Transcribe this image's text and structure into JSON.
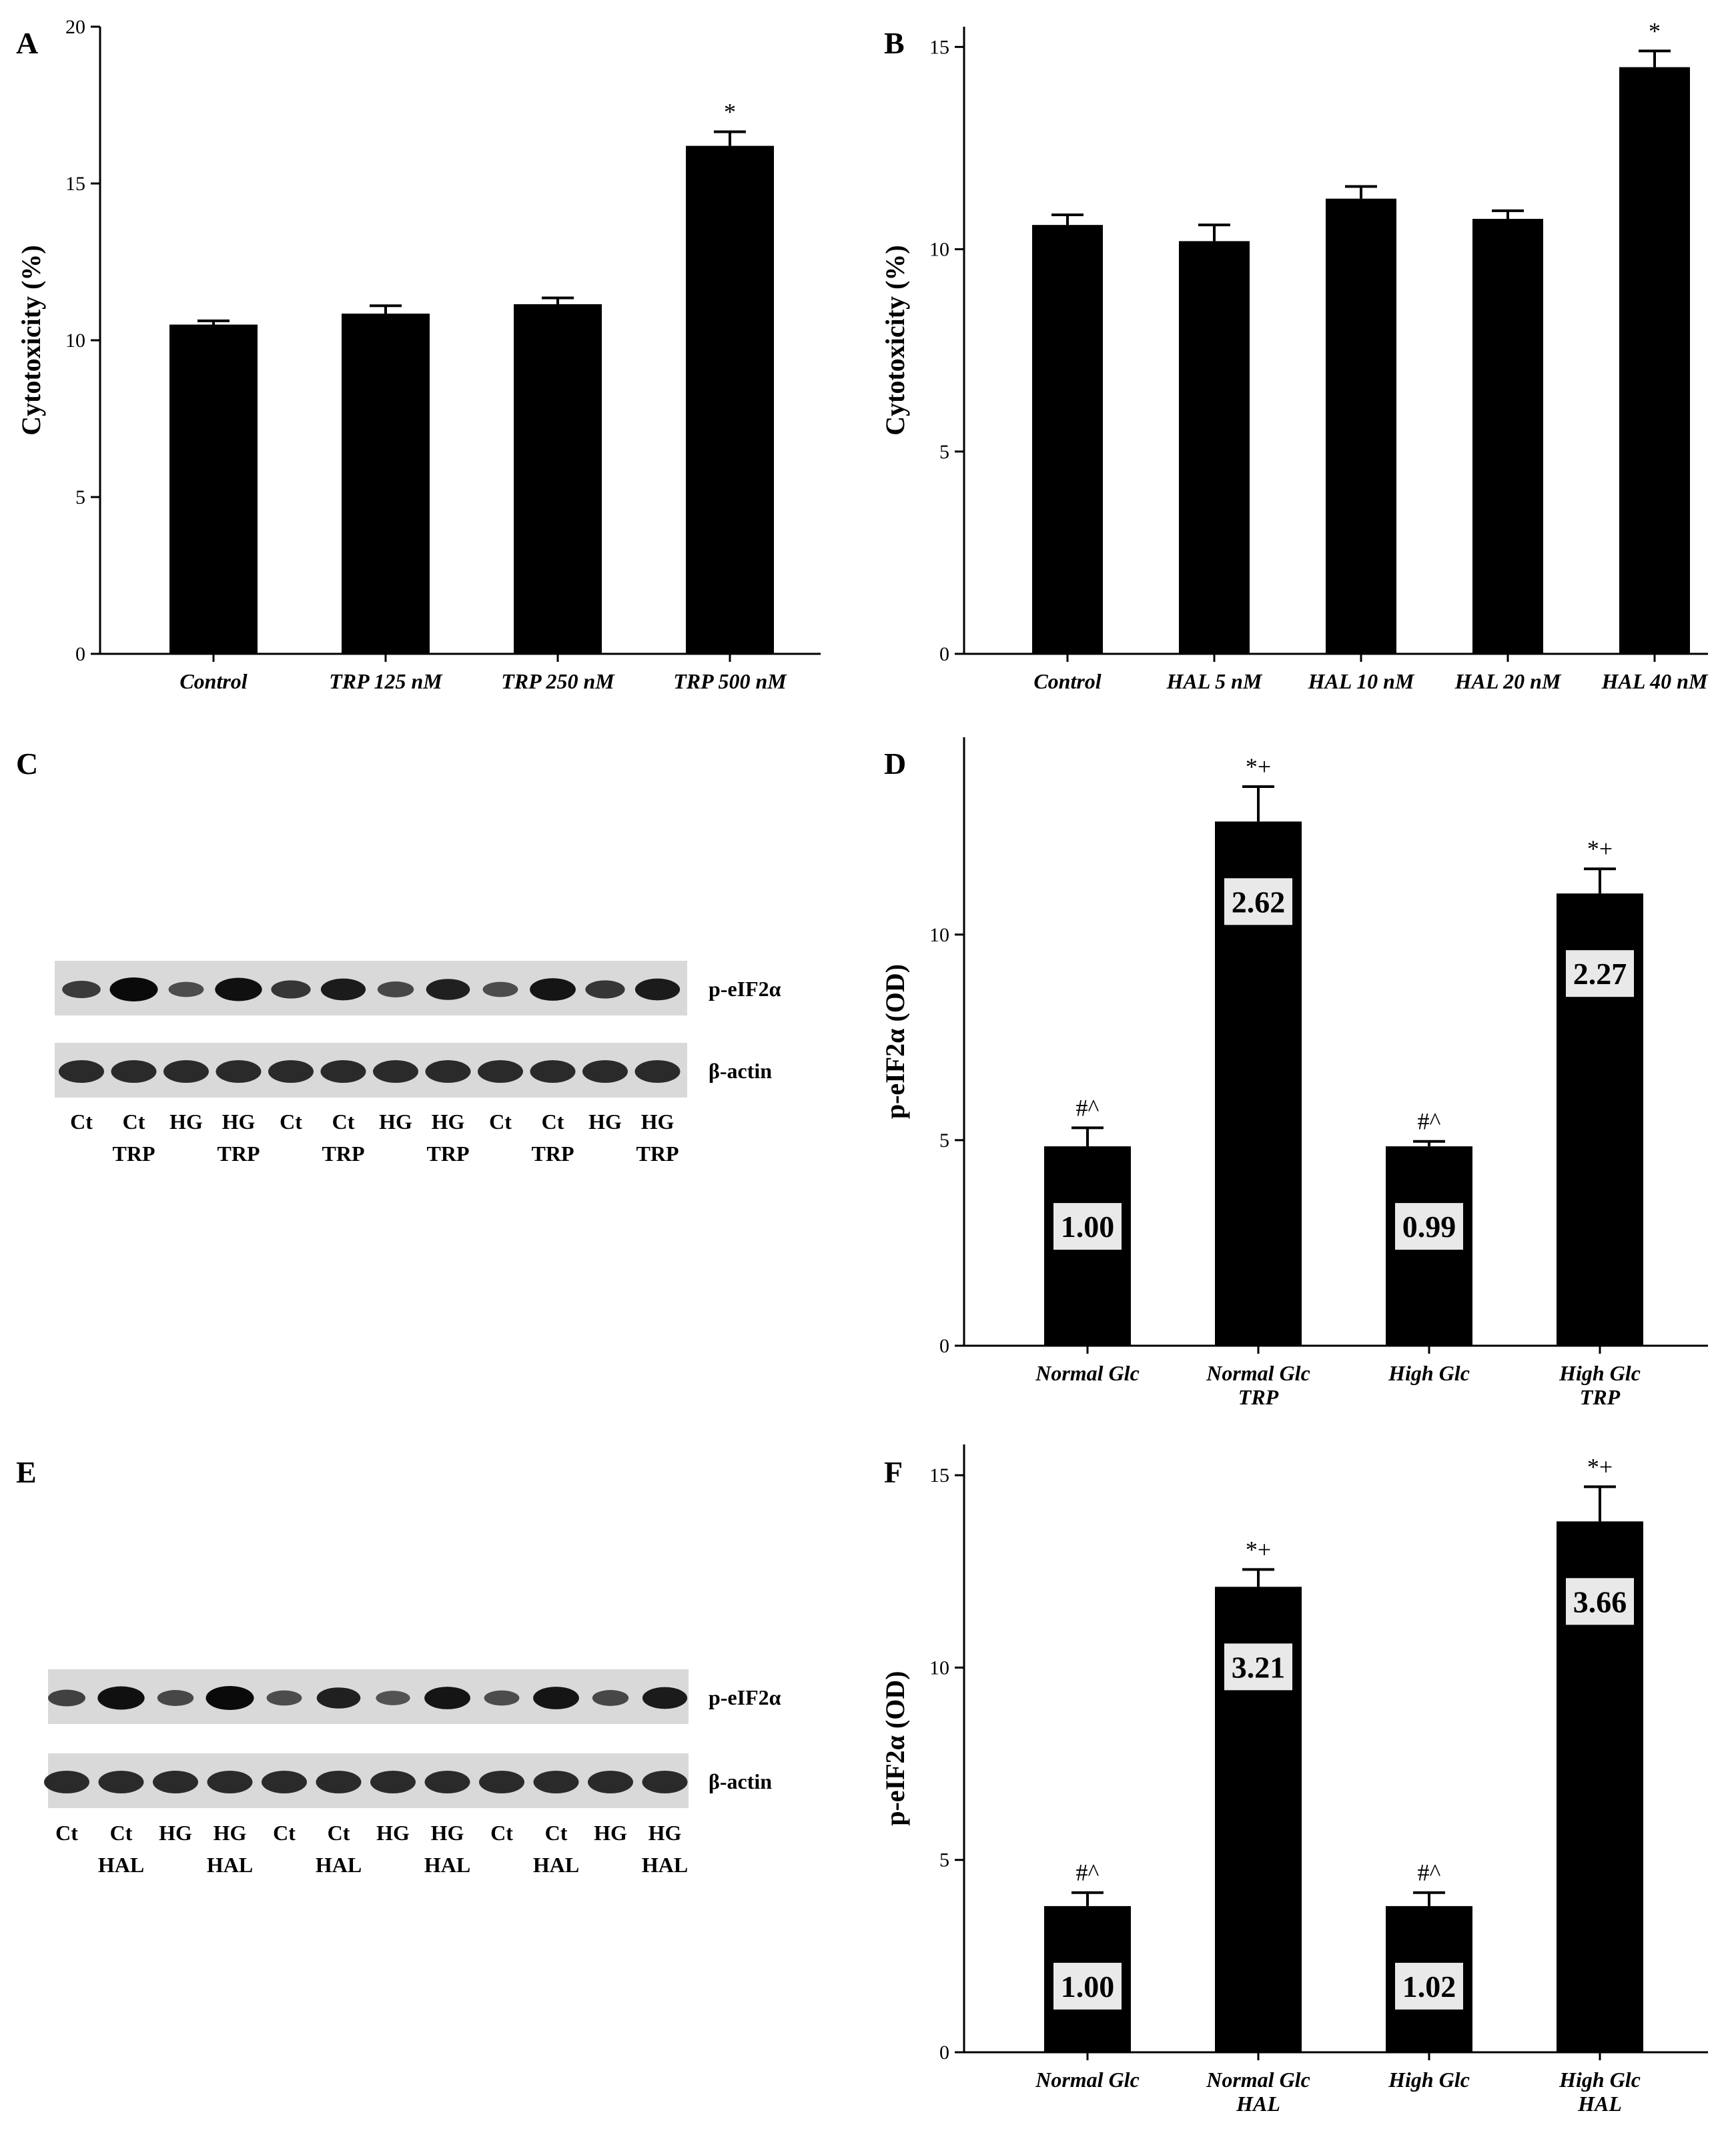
{
  "chart_data": [
    {
      "panel": "A",
      "type": "bar",
      "categories": [
        "Control",
        "TRP 125 nM",
        "TRP 250 nM",
        "TRP 500 nM"
      ],
      "values": [
        10.5,
        10.85,
        11.15,
        16.2
      ],
      "errors": [
        0.12,
        0.25,
        0.2,
        0.45
      ],
      "significance": [
        "",
        "",
        "",
        "*"
      ],
      "ylabel": "Cytotoxicity (%)",
      "ylim": [
        0,
        20
      ],
      "yticks": [
        0,
        5,
        10,
        15,
        20
      ]
    },
    {
      "panel": "B",
      "type": "bar",
      "categories": [
        "Control",
        "HAL 5 nM",
        "HAL 10 nM",
        "HAL 20 nM",
        "HAL 40 nM"
      ],
      "values": [
        10.6,
        10.2,
        11.25,
        10.75,
        14.5
      ],
      "errors": [
        0.25,
        0.4,
        0.3,
        0.2,
        0.4
      ],
      "significance": [
        "",
        "",
        "",
        "",
        "*"
      ],
      "ylabel": "Cytotoxicity (%)",
      "ylim": [
        0,
        15.5
      ],
      "yticks": [
        0,
        5,
        10,
        15
      ]
    },
    {
      "panel": "D",
      "type": "bar",
      "categories": [
        [
          "Normal Glc"
        ],
        [
          "Normal Glc",
          "TRP"
        ],
        [
          "High Glc"
        ],
        [
          "High Glc",
          "TRP"
        ]
      ],
      "values": [
        4.85,
        12.75,
        4.85,
        11.0
      ],
      "errors": [
        0.45,
        0.85,
        0.12,
        0.6
      ],
      "bar_labels": [
        "1.00",
        "2.62",
        "0.99",
        "2.27"
      ],
      "significance": [
        "#^",
        "*+",
        "#^",
        "*+"
      ],
      "ylabel": "p-eIF2α (OD)",
      "ylim": [
        0,
        14.8
      ],
      "yticks": [
        0,
        5,
        10
      ]
    },
    {
      "panel": "F",
      "type": "bar",
      "categories": [
        [
          "Normal Glc"
        ],
        [
          "Normal Glc",
          "HAL"
        ],
        [
          "High Glc"
        ],
        [
          "High Glc",
          "HAL"
        ]
      ],
      "values": [
        3.8,
        12.1,
        3.8,
        13.8
      ],
      "errors": [
        0.35,
        0.45,
        0.35,
        0.9
      ],
      "bar_labels": [
        "1.00",
        "3.21",
        "1.02",
        "3.66"
      ],
      "significance": [
        "#^",
        "*+",
        "#^",
        "*+"
      ],
      "ylabel": "p-eIF2α (OD)",
      "ylim": [
        0,
        15.8
      ],
      "yticks": [
        0,
        5,
        10,
        15
      ]
    }
  ],
  "blots": [
    {
      "panel": "C",
      "bands": [
        "p-eIF2α",
        "β-actin"
      ],
      "lanes_top": [
        "Ct",
        "Ct",
        "HG",
        "HG",
        "Ct",
        "Ct",
        "HG",
        "HG",
        "Ct",
        "Ct",
        "HG",
        "HG"
      ],
      "lanes_bottom": [
        "",
        "TRP",
        "",
        "TRP",
        "",
        "TRP",
        "",
        "TRP",
        "",
        "TRP",
        "",
        "TRP"
      ],
      "band_intensity": [
        0.55,
        1.0,
        0.4,
        0.95,
        0.6,
        0.85,
        0.45,
        0.8,
        0.4,
        0.9,
        0.6,
        0.85
      ]
    },
    {
      "panel": "E",
      "bands": [
        "p-eIF2α",
        "β-actin"
      ],
      "lanes_top": [
        "Ct",
        "Ct",
        "HG",
        "HG",
        "Ct",
        "Ct",
        "HG",
        "HG",
        "Ct",
        "Ct",
        "HG",
        "HG"
      ],
      "lanes_bottom": [
        "",
        "HAL",
        "",
        "HAL",
        "",
        "HAL",
        "",
        "HAL",
        "",
        "HAL",
        "",
        "HAL"
      ],
      "band_intensity": [
        0.5,
        0.95,
        0.45,
        1.0,
        0.4,
        0.8,
        0.35,
        0.9,
        0.4,
        0.9,
        0.45,
        0.85
      ]
    }
  ]
}
